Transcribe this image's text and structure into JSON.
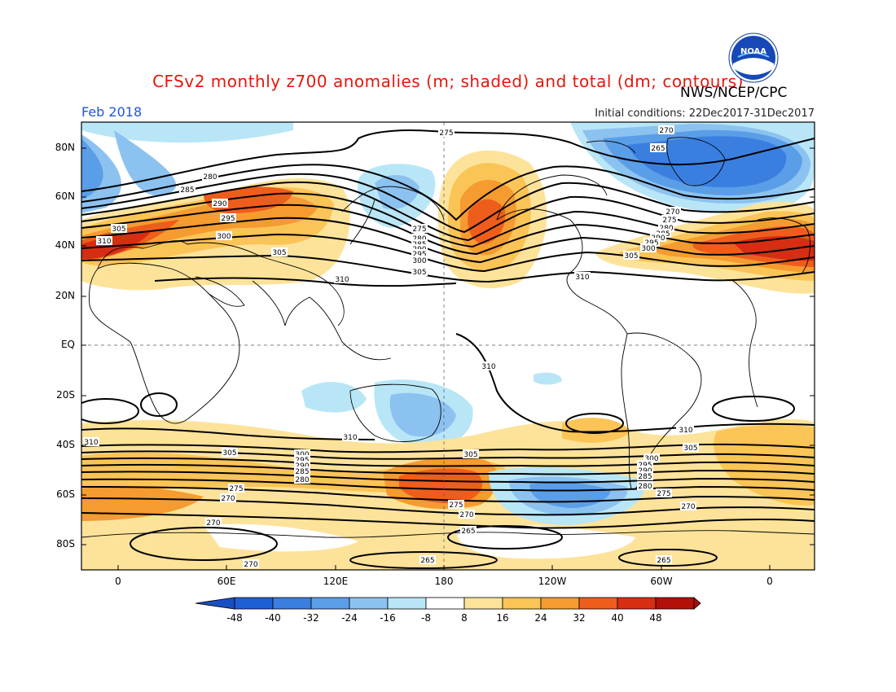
{
  "header": {
    "title": "CFSv2 monthly z700 anomalies (m; shaded) and total (dm; contours)",
    "agency": "NWS/NCEP/CPC",
    "month": "Feb 2018",
    "initial_conditions": "Initial conditions: 22Dec2017-31Dec2017",
    "logo_text": "NOAA"
  },
  "axes": {
    "lat_labels": [
      "80N",
      "60N",
      "40N",
      "20N",
      "EQ",
      "20S",
      "40S",
      "60S",
      "80S"
    ],
    "lon_labels": [
      "0",
      "60E",
      "120E",
      "180",
      "120W",
      "60W",
      "0"
    ]
  },
  "colorbar": {
    "labels": [
      "-48",
      "-40",
      "-32",
      "-24",
      "-16",
      "-8",
      "8",
      "16",
      "24",
      "32",
      "40",
      "48"
    ],
    "colors": [
      "#1f5fd6",
      "#3a7fe0",
      "#5a9ee8",
      "#8cc2f0",
      "#b8e6f6",
      "#ffffff",
      "#fde39a",
      "#fbc456",
      "#f59b30",
      "#ee5d1c",
      "#d72d13",
      "#b31009"
    ],
    "end_low": "#1a4fc4",
    "end_high": "#a80d0d"
  },
  "contour_labels": [
    {
      "text": "275"
    },
    {
      "text": "270"
    },
    {
      "text": "265"
    },
    {
      "text": "280"
    },
    {
      "text": "285"
    },
    {
      "text": "290"
    },
    {
      "text": "295"
    },
    {
      "text": "300"
    },
    {
      "text": "305"
    },
    {
      "text": "310"
    },
    {
      "text": "310"
    },
    {
      "text": "305"
    },
    {
      "text": "275"
    },
    {
      "text": "280"
    },
    {
      "text": "285"
    },
    {
      "text": "290"
    },
    {
      "text": "295"
    },
    {
      "text": "300"
    },
    {
      "text": "305"
    },
    {
      "text": "310"
    },
    {
      "text": "270"
    },
    {
      "text": "275"
    },
    {
      "text": "280"
    },
    {
      "text": "285"
    },
    {
      "text": "290"
    },
    {
      "text": "295"
    },
    {
      "text": "300"
    },
    {
      "text": "305"
    },
    {
      "text": "310"
    },
    {
      "text": "310"
    },
    {
      "text": "310"
    },
    {
      "text": "310"
    },
    {
      "text": "305"
    },
    {
      "text": "300"
    },
    {
      "text": "295"
    },
    {
      "text": "290"
    },
    {
      "text": "285"
    },
    {
      "text": "280"
    },
    {
      "text": "305"
    },
    {
      "text": "275"
    },
    {
      "text": "270"
    },
    {
      "text": "275"
    },
    {
      "text": "270"
    },
    {
      "text": "265"
    },
    {
      "text": "265"
    },
    {
      "text": "270"
    },
    {
      "text": "270"
    },
    {
      "text": "310"
    },
    {
      "text": "305"
    },
    {
      "text": "300"
    },
    {
      "text": "295"
    },
    {
      "text": "290"
    },
    {
      "text": "285"
    },
    {
      "text": "280"
    },
    {
      "text": "275"
    },
    {
      "text": "270"
    },
    {
      "text": "265"
    }
  ]
}
